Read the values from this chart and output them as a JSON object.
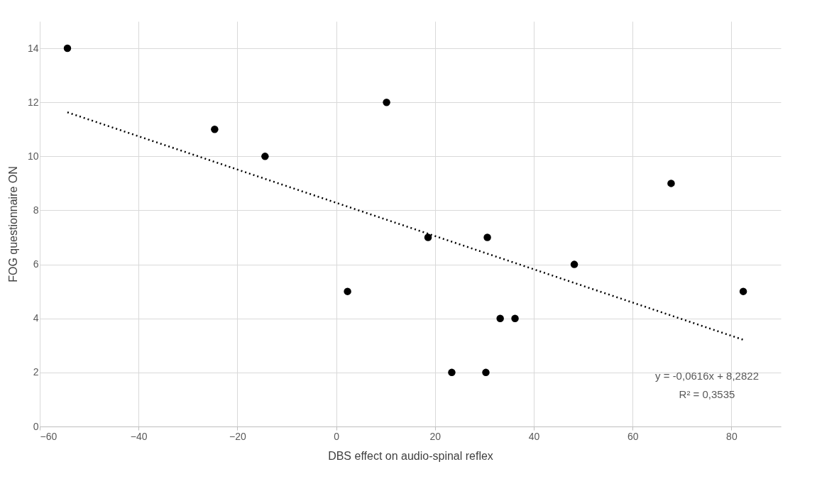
{
  "chart_data": {
    "type": "scatter",
    "xlabel": "DBS effect on audio-spinal reflex",
    "ylabel": "FOG questionnaire ON",
    "xlim": [
      -60,
      90
    ],
    "xticks": [
      -60,
      -40,
      -20,
      0,
      20,
      40,
      60,
      80
    ],
    "ylim": [
      0,
      15
    ],
    "yticks": [
      0,
      2,
      4,
      6,
      8,
      10,
      12,
      14
    ],
    "grid": true,
    "series": [
      {
        "color": "#000000",
        "marker": "circle",
        "x": [
          -54.4,
          -24.6,
          -14.4,
          2.3,
          10.2,
          18.6,
          30.6,
          33.2,
          36.2,
          23.4,
          30.3,
          48.2,
          67.8,
          82.4
        ],
        "values": [
          14,
          11,
          10,
          5,
          12,
          7,
          7,
          4,
          4,
          2,
          2,
          6,
          9,
          5
        ]
      },
      {
        "type": "line",
        "color": "#000000",
        "line_style": "dotted",
        "marker": "none",
        "x": [
          -54.4,
          82.4
        ],
        "values": [
          11.63,
          3.21
        ]
      }
    ],
    "annotations": [
      "y = -0,0616x + 8,2822",
      "R² = 0,3535"
    ]
  }
}
